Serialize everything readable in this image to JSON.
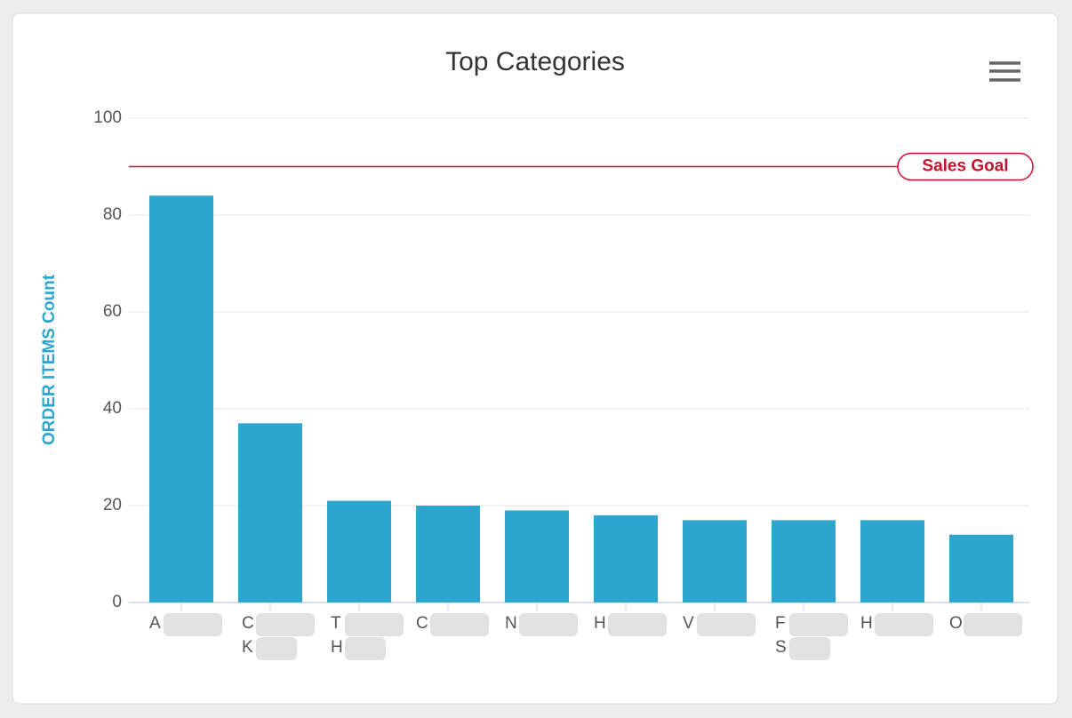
{
  "chart_data": {
    "type": "bar",
    "title": "Top Categories",
    "y_label": "ORDER ITEMS Count",
    "categories": [
      [
        "A"
      ],
      [
        "C",
        "K"
      ],
      [
        "T",
        "H"
      ],
      [
        "C"
      ],
      [
        "N"
      ],
      [
        "H"
      ],
      [
        "V"
      ],
      [
        "F",
        "S"
      ],
      [
        "H"
      ],
      [
        "O"
      ]
    ],
    "values": [
      84,
      37,
      21,
      20,
      19,
      18,
      17,
      17,
      17,
      14
    ],
    "color": "#2ca5cf",
    "ylim": [
      0,
      100
    ],
    "yticks": [
      0,
      20,
      40,
      60,
      80,
      100
    ],
    "grid": true,
    "plot_lines": [
      {
        "label": "Sales Goal",
        "value": 90,
        "color": "#c8102e"
      }
    ]
  }
}
